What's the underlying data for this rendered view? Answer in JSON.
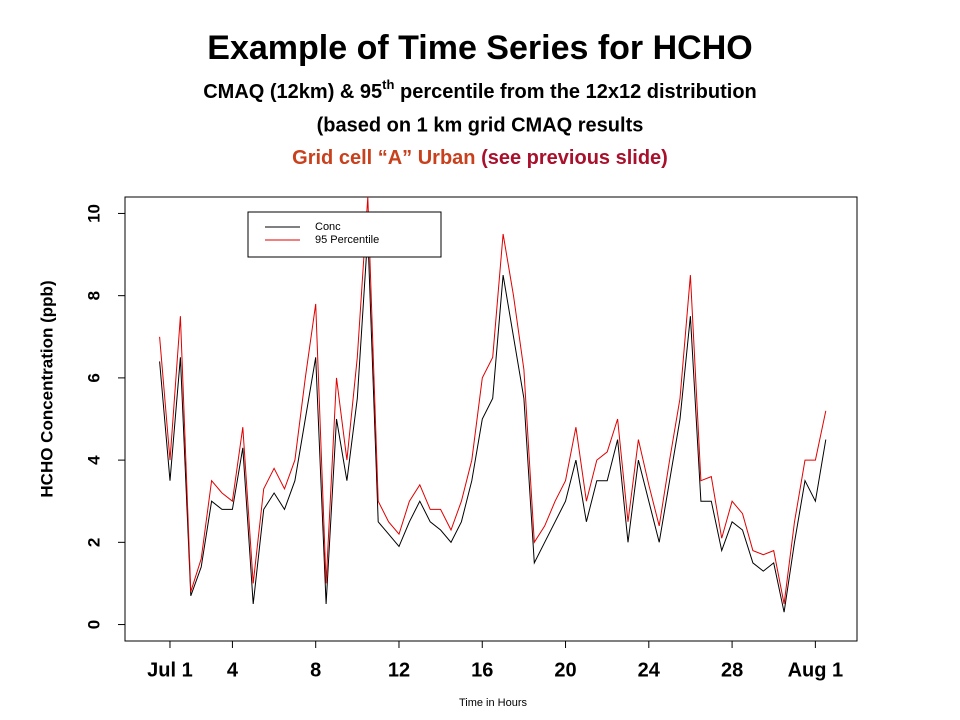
{
  "chart_data": {
    "type": "line",
    "title": "Example of Time Series for HCHO",
    "subtitle_parts": [
      "CMAQ (12km) &  95",
      "th",
      " percentile from the 12x12 distribution"
    ],
    "subtitle_line2": "(based on 1 km grid CMAQ results",
    "subtitle_line3": [
      {
        "text": "Grid cell  “A”  Urban",
        "color": "#c8401c"
      },
      {
        "text": " (see previous slide)",
        "color": "#a8102c"
      }
    ],
    "ylabel": "HCHO Concentration (ppb)",
    "xlabel": "Time in Hours",
    "x": [
      0.5,
      1,
      1.5,
      2,
      2.5,
      3,
      3.5,
      4,
      4.5,
      5,
      5.5,
      6,
      6.5,
      7,
      7.5,
      8,
      8.5,
      9,
      9.5,
      10,
      10.5,
      11,
      11.5,
      12,
      12.5,
      13,
      13.5,
      14,
      14.5,
      15,
      15.5,
      16,
      16.5,
      17,
      17.5,
      18,
      18.5,
      19,
      19.5,
      20,
      20.5,
      21,
      21.5,
      22,
      22.5,
      23,
      23.5,
      24,
      24.5,
      25,
      25.5,
      26,
      26.5,
      27,
      27.5,
      28,
      28.5,
      29,
      29.5,
      30,
      30.5,
      31,
      31.5,
      32,
      32.5
    ],
    "series": [
      {
        "name": "Conc",
        "color": "#000000",
        "values": [
          6.4,
          3.5,
          6.5,
          0.7,
          1.4,
          3.0,
          2.8,
          2.8,
          4.3,
          0.5,
          2.8,
          3.2,
          2.8,
          3.5,
          5.0,
          6.5,
          0.5,
          5.0,
          3.5,
          5.5,
          9.5,
          2.5,
          2.2,
          1.9,
          2.5,
          3.0,
          2.5,
          2.3,
          2.0,
          2.5,
          3.5,
          5.0,
          5.5,
          8.5,
          7.0,
          5.5,
          1.5,
          2.0,
          2.5,
          3.0,
          4.0,
          2.5,
          3.5,
          3.5,
          4.5,
          2.0,
          4.0,
          3.0,
          2.0,
          3.5,
          5.0,
          7.5,
          3.0,
          3.0,
          1.8,
          2.5,
          2.3,
          1.5,
          1.3,
          1.5,
          0.3,
          2.0,
          3.5,
          3.0,
          4.5
        ]
      },
      {
        "name": "95 Percentile",
        "color": "#e00000",
        "values": [
          7.0,
          4.0,
          7.5,
          0.8,
          1.6,
          3.5,
          3.2,
          3.0,
          4.8,
          1.0,
          3.3,
          3.8,
          3.3,
          4.0,
          6.0,
          7.8,
          1.0,
          6.0,
          4.0,
          6.5,
          10.4,
          3.0,
          2.5,
          2.2,
          3.0,
          3.4,
          2.8,
          2.8,
          2.3,
          3.0,
          4.0,
          6.0,
          6.5,
          9.5,
          8.0,
          6.2,
          2.0,
          2.4,
          3.0,
          3.5,
          4.8,
          3.0,
          4.0,
          4.2,
          5.0,
          2.5,
          4.5,
          3.4,
          2.4,
          4.0,
          5.5,
          8.5,
          3.5,
          3.6,
          2.1,
          3.0,
          2.7,
          1.8,
          1.7,
          1.8,
          0.5,
          2.5,
          4.0,
          4.0,
          5.2
        ]
      }
    ],
    "xlim": [
      -1.16,
      34.0
    ],
    "xticks": [
      {
        "value": 1,
        "label": "Jul  1"
      },
      4,
      8,
      12,
      16,
      20,
      24,
      28,
      {
        "value": 32,
        "label": "Aug 1"
      }
    ],
    "ylim": [
      -0.4,
      10.4
    ],
    "yticks": [
      0,
      2,
      4,
      6,
      8,
      10
    ],
    "legend": "top-left"
  }
}
